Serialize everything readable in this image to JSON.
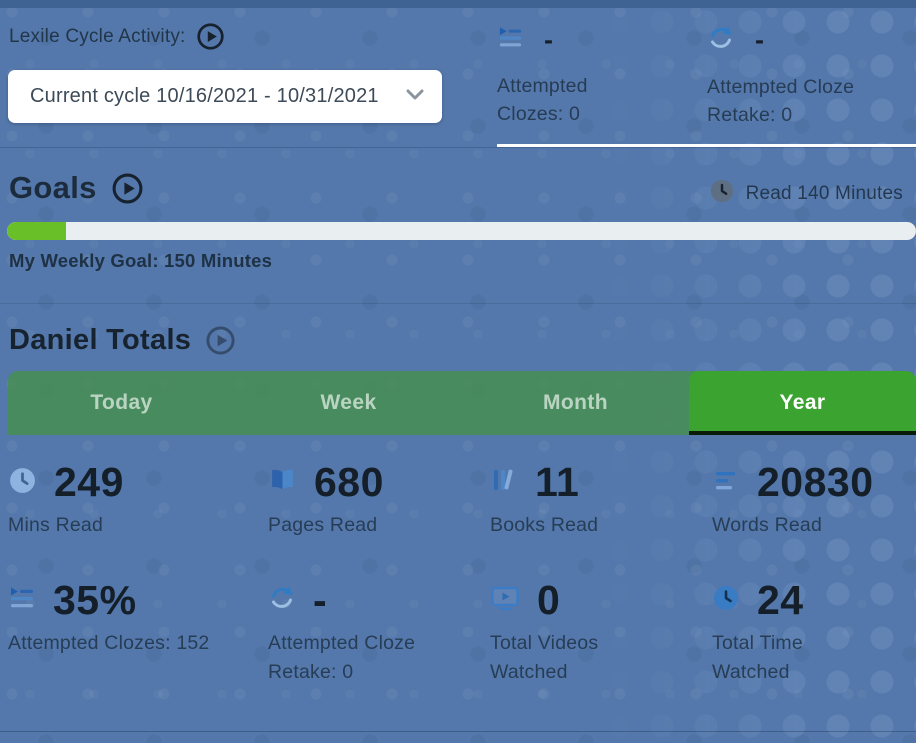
{
  "colors": {
    "background": "#5478ab",
    "top-strip": "#3f6494",
    "tab-active-green": "#3ba32f",
    "tab-inactive-green": "#468f4e",
    "progress-green": "#68bf27",
    "progress-track": "#e9eef1",
    "icon-blue": "#2f6fbe",
    "text-dark": "#141f2a",
    "text-navy": "#26394d"
  },
  "header": {
    "label": "Lexile Cycle Activity:",
    "play_icon": "play-circle-icon",
    "cycle_dropdown": {
      "value": "Current cycle 10/16/2021 - 10/31/2021",
      "chevron_icon": "chevron-down-icon"
    },
    "stats": [
      {
        "icon": "cloze-list-icon",
        "value": "-",
        "label": "Attempted Clozes: 0"
      },
      {
        "icon": "retake-redo-icon",
        "value": "-",
        "label": "Attempted Cloze Retake: 0"
      }
    ]
  },
  "goals": {
    "title": "Goals",
    "play_icon": "play-circle-icon",
    "badge": {
      "icon": "clock-icon",
      "text": "Read 140 Minutes"
    },
    "progress_percent": 6.5,
    "caption": "My Weekly Goal: 150 Minutes"
  },
  "totals": {
    "title": "Daniel Totals",
    "play_icon": "play-circle-icon",
    "tabs": [
      {
        "label": "Today",
        "active": false
      },
      {
        "label": "Week",
        "active": false
      },
      {
        "label": "Month",
        "active": false
      },
      {
        "label": "Year",
        "active": true
      }
    ],
    "stats": [
      {
        "icon": "clock-icon",
        "value": "249",
        "label": "Mins Read"
      },
      {
        "icon": "open-book-icon",
        "value": "680",
        "label": "Pages Read"
      },
      {
        "icon": "books-icon",
        "value": "11",
        "label": "Books Read"
      },
      {
        "icon": "text-lines-icon",
        "value": "20830",
        "label": "Words Read"
      },
      {
        "icon": "cloze-list-icon",
        "value": "35%",
        "label": "Attempted Clozes: 152"
      },
      {
        "icon": "retake-redo-icon",
        "value": "-",
        "label": "Attempted Cloze Retake: 0"
      },
      {
        "icon": "video-player-icon",
        "value": "0",
        "label": "Total Videos Watched"
      },
      {
        "icon": "clock-icon",
        "value": "24",
        "label": "Total Time Watched"
      }
    ]
  }
}
